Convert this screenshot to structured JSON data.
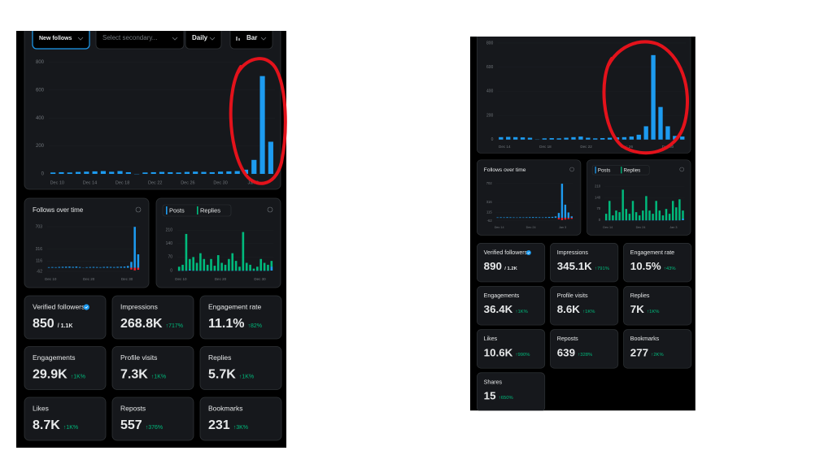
{
  "left": {
    "controls": [
      "New follows",
      "Select secondary...",
      "Daily",
      "Bar"
    ],
    "main_chart": {
      "type": "bar",
      "color": "#1d9bf0",
      "ylim": [
        0,
        820
      ],
      "yticks": [
        0,
        200,
        400,
        600,
        800
      ],
      "x_labels": [
        "Dec 10",
        "Dec 14",
        "Dec 18",
        "Dec 22",
        "Dec 26",
        "Dec 30",
        "Jan 3"
      ],
      "values": [
        10,
        12,
        10,
        14,
        16,
        18,
        20,
        15,
        20,
        12,
        0,
        10,
        12,
        14,
        12,
        10,
        14,
        16,
        14,
        12,
        16,
        18,
        20,
        30,
        100,
        700,
        230
      ]
    },
    "follows_chart": {
      "type": "bar",
      "title": "Follows over time",
      "ylim": [
        -62,
        703
      ],
      "yticks": [
        -62,
        116,
        316,
        703
      ],
      "x_labels": [
        "Dec 10",
        "Dec 20",
        "Dec 30"
      ],
      "follows": {
        "color": "#1d9bf0",
        "values": [
          10,
          12,
          10,
          14,
          16,
          18,
          20,
          15,
          20,
          12,
          0,
          10,
          12,
          14,
          12,
          10,
          14,
          16,
          14,
          12,
          16,
          18,
          20,
          30,
          100,
          700,
          230
        ]
      },
      "unfollows": {
        "color": "#f4212e",
        "values": [
          null,
          null,
          null,
          null,
          null,
          null,
          null,
          null,
          null,
          null,
          null,
          null,
          null,
          null,
          null,
          null,
          null,
          null,
          null,
          null,
          null,
          null,
          null,
          null,
          -30,
          -45,
          -35
        ]
      }
    },
    "posts_chart": {
      "type": "bar",
      "legend": [
        "Posts",
        "Replies"
      ],
      "ylim": [
        0,
        215
      ],
      "yticks": [
        0,
        70,
        140,
        210
      ],
      "x_labels": [
        "Dec 10",
        "Dec 20",
        "Dec 30"
      ],
      "posts": {
        "color": "#1d9bf0",
        "values": [
          0,
          0,
          0,
          5,
          0,
          0,
          0,
          0,
          0,
          0,
          0,
          0,
          0,
          0,
          0,
          0,
          0,
          0,
          0,
          0,
          0,
          0,
          0,
          0,
          0,
          0,
          20
        ]
      },
      "replies": {
        "color": "#00ba7c",
        "values": [
          20,
          30,
          190,
          60,
          70,
          40,
          90,
          60,
          30,
          60,
          25,
          80,
          40,
          30,
          60,
          90,
          50,
          20,
          200,
          40,
          30,
          10,
          20,
          60,
          40,
          30,
          50
        ]
      }
    },
    "metrics": [
      {
        "label": "Verified followers",
        "value": "850",
        "sub": "/ 1.1K"
      },
      {
        "label": "Impressions",
        "value": "268.8K",
        "sub": "↑717%"
      },
      {
        "label": "Engagement rate",
        "value": "11.1%",
        "sub": "↑82%"
      },
      {
        "label": "Engagements",
        "value": "29.9K",
        "sub": "↑1K%"
      },
      {
        "label": "Profile visits",
        "value": "7.3K",
        "sub": "↑1K%"
      },
      {
        "label": "Replies",
        "value": "5.7K",
        "sub": "↑1K%"
      },
      {
        "label": "Likes",
        "value": "8.7K",
        "sub": "↑1K%"
      },
      {
        "label": "Reposts",
        "value": "557",
        "sub": "↑376%"
      },
      {
        "label": "Bookmarks",
        "value": "231",
        "sub": "↑3K%"
      }
    ]
  },
  "right": {
    "main_chart": {
      "type": "bar",
      "color": "#1d9bf0",
      "ylim": [
        0,
        820
      ],
      "yticks": [
        0,
        200,
        400,
        600,
        800
      ],
      "x_labels": [
        "Dec 14",
        "Dec 18",
        "Dec 22",
        "Dec 26",
        "Dec 30"
      ],
      "values": [
        20,
        22,
        20,
        18,
        15,
        0,
        10,
        12,
        10,
        15,
        20,
        25,
        15,
        10,
        12,
        15,
        18,
        20,
        25,
        40,
        110,
        700,
        270,
        110,
        30,
        25
      ]
    },
    "follows_chart": {
      "type": "bar",
      "title": "Follows over time",
      "ylim": [
        -62,
        702
      ],
      "yticks": [
        -62,
        115,
        316,
        702
      ],
      "x_labels": [
        "Dec 14",
        "Dec 24",
        "Jan 3"
      ],
      "follows": {
        "color": "#1d9bf0",
        "values": [
          10,
          12,
          10,
          14,
          12,
          10,
          8,
          12,
          10,
          12,
          14,
          16,
          14,
          12,
          10,
          14,
          18,
          20,
          30,
          100,
          700,
          270,
          110,
          30
        ]
      },
      "unfollows": {
        "color": "#f4212e",
        "values": [
          null,
          null,
          null,
          null,
          null,
          null,
          null,
          null,
          null,
          null,
          null,
          null,
          null,
          null,
          null,
          null,
          null,
          null,
          null,
          -30,
          -45,
          -35,
          -25,
          -20
        ]
      }
    },
    "posts_chart": {
      "type": "bar",
      "legend": [
        "Posts",
        "Replies"
      ],
      "ylim": [
        0,
        215
      ],
      "yticks": [
        0,
        70,
        140,
        210
      ],
      "x_labels": [
        "Dec 14",
        "Dec 24",
        "Jan 3"
      ],
      "posts": {
        "color": "#1d9bf0",
        "values": [
          0,
          0,
          0,
          0,
          0,
          0,
          0,
          0,
          0,
          0,
          0,
          0,
          0,
          0,
          0,
          0,
          0,
          0,
          0,
          0,
          0,
          0,
          0,
          10
        ]
      },
      "replies": {
        "color": "#00ba7c",
        "values": [
          40,
          120,
          30,
          60,
          50,
          190,
          70,
          40,
          120,
          50,
          30,
          60,
          150,
          60,
          40,
          120,
          60,
          30,
          70,
          40,
          120,
          80,
          130,
          60
        ]
      }
    },
    "metrics": [
      {
        "label": "Verified followers",
        "value": "890",
        "sub": "/ 1.2K"
      },
      {
        "label": "Impressions",
        "value": "345.1K",
        "sub": "↑791%"
      },
      {
        "label": "Engagement rate",
        "value": "10.5%",
        "sub": "↑43%"
      },
      {
        "label": "Engagements",
        "value": "36.4K",
        "sub": "↑1K%"
      },
      {
        "label": "Profile visits",
        "value": "8.6K",
        "sub": "↑1K%"
      },
      {
        "label": "Replies",
        "value": "7K",
        "sub": "↑1K%"
      },
      {
        "label": "Likes",
        "value": "10.6K",
        "sub": "↑990%"
      },
      {
        "label": "Reposts",
        "value": "639",
        "sub": "↑328%"
      },
      {
        "label": "Bookmarks",
        "value": "277",
        "sub": "↑2K%"
      },
      {
        "label": "Shares",
        "value": "15",
        "sub": "↑650%"
      }
    ]
  }
}
